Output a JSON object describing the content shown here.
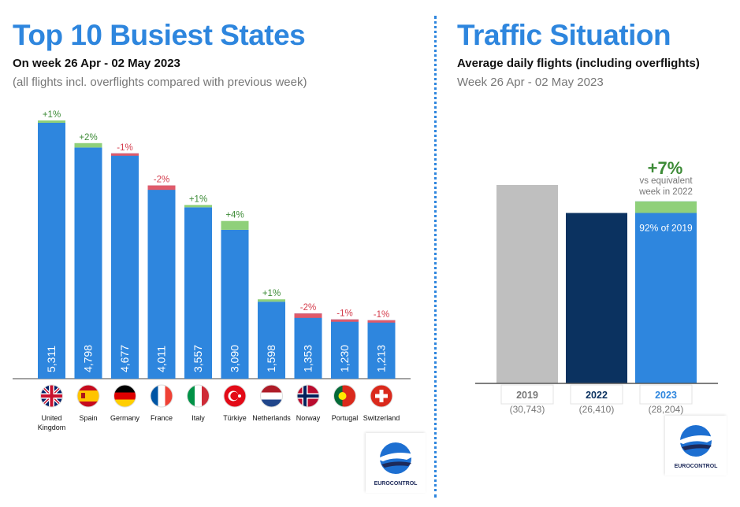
{
  "left": {
    "title": "Top 10 Busiest States",
    "subtitle": "On week 26 Apr - 02 May 2023",
    "note": "(all flights incl. overflights compared with previous week)"
  },
  "right": {
    "title": "Traffic Situation",
    "subtitle": "Average daily flights (including overflights)",
    "note": "Week 26 Apr - 02 May 2023"
  },
  "chart_data": [
    {
      "type": "bar",
      "categories": [
        "United Kingdom",
        "Spain",
        "Germany",
        "France",
        "Italy",
        "Türkiye",
        "Netherlands",
        "Norway",
        "Portugal",
        "Switzerland"
      ],
      "values": [
        5311,
        4798,
        4677,
        4011,
        3557,
        3090,
        1598,
        1353,
        1230,
        1213
      ],
      "value_labels": [
        "5,311",
        "4,798",
        "4,677",
        "4,011",
        "3,557",
        "3,090",
        "1,598",
        "1,353",
        "1,230",
        "1,213"
      ],
      "change_labels": [
        "+1%",
        "+2%",
        "-1%",
        "-2%",
        "+1%",
        "+4%",
        "+1%",
        "-2%",
        "-1%",
        "-1%"
      ],
      "change_pct": [
        1,
        2,
        -1,
        -2,
        1,
        4,
        1,
        -2,
        -1,
        -1
      ],
      "flag_icons": [
        "flag-united-kingdom-icon",
        "flag-spain-icon",
        "flag-germany-icon",
        "flag-france-icon",
        "flag-italy-icon",
        "flag-turkiye-icon",
        "flag-netherlands-icon",
        "flag-norway-icon",
        "flag-portugal-icon",
        "flag-switzerland-icon"
      ],
      "ylim": [
        0,
        5500
      ],
      "colors": {
        "bar": "#2e86de",
        "up": "#8fd07a",
        "down": "#e05a6a",
        "up_text": "#3d8b37",
        "down_text": "#d43d4d"
      }
    },
    {
      "type": "bar",
      "categories": [
        "2019",
        "2022",
        "2023"
      ],
      "values": [
        30743,
        26410,
        28204
      ],
      "value_labels": [
        "(30,743)",
        "(26,410)",
        "(28,204)"
      ],
      "colors": [
        "#bfbfbf",
        "#0b3260",
        "#2e86de"
      ],
      "change_label": "+7%",
      "change_note": [
        "vs equivalent",
        "week in 2022"
      ],
      "inner_label": "92% of 2019",
      "ylim": [
        0,
        33000
      ]
    }
  ],
  "logos": {
    "left": "EUROCONTROL",
    "right": "EUROCONTROL"
  }
}
